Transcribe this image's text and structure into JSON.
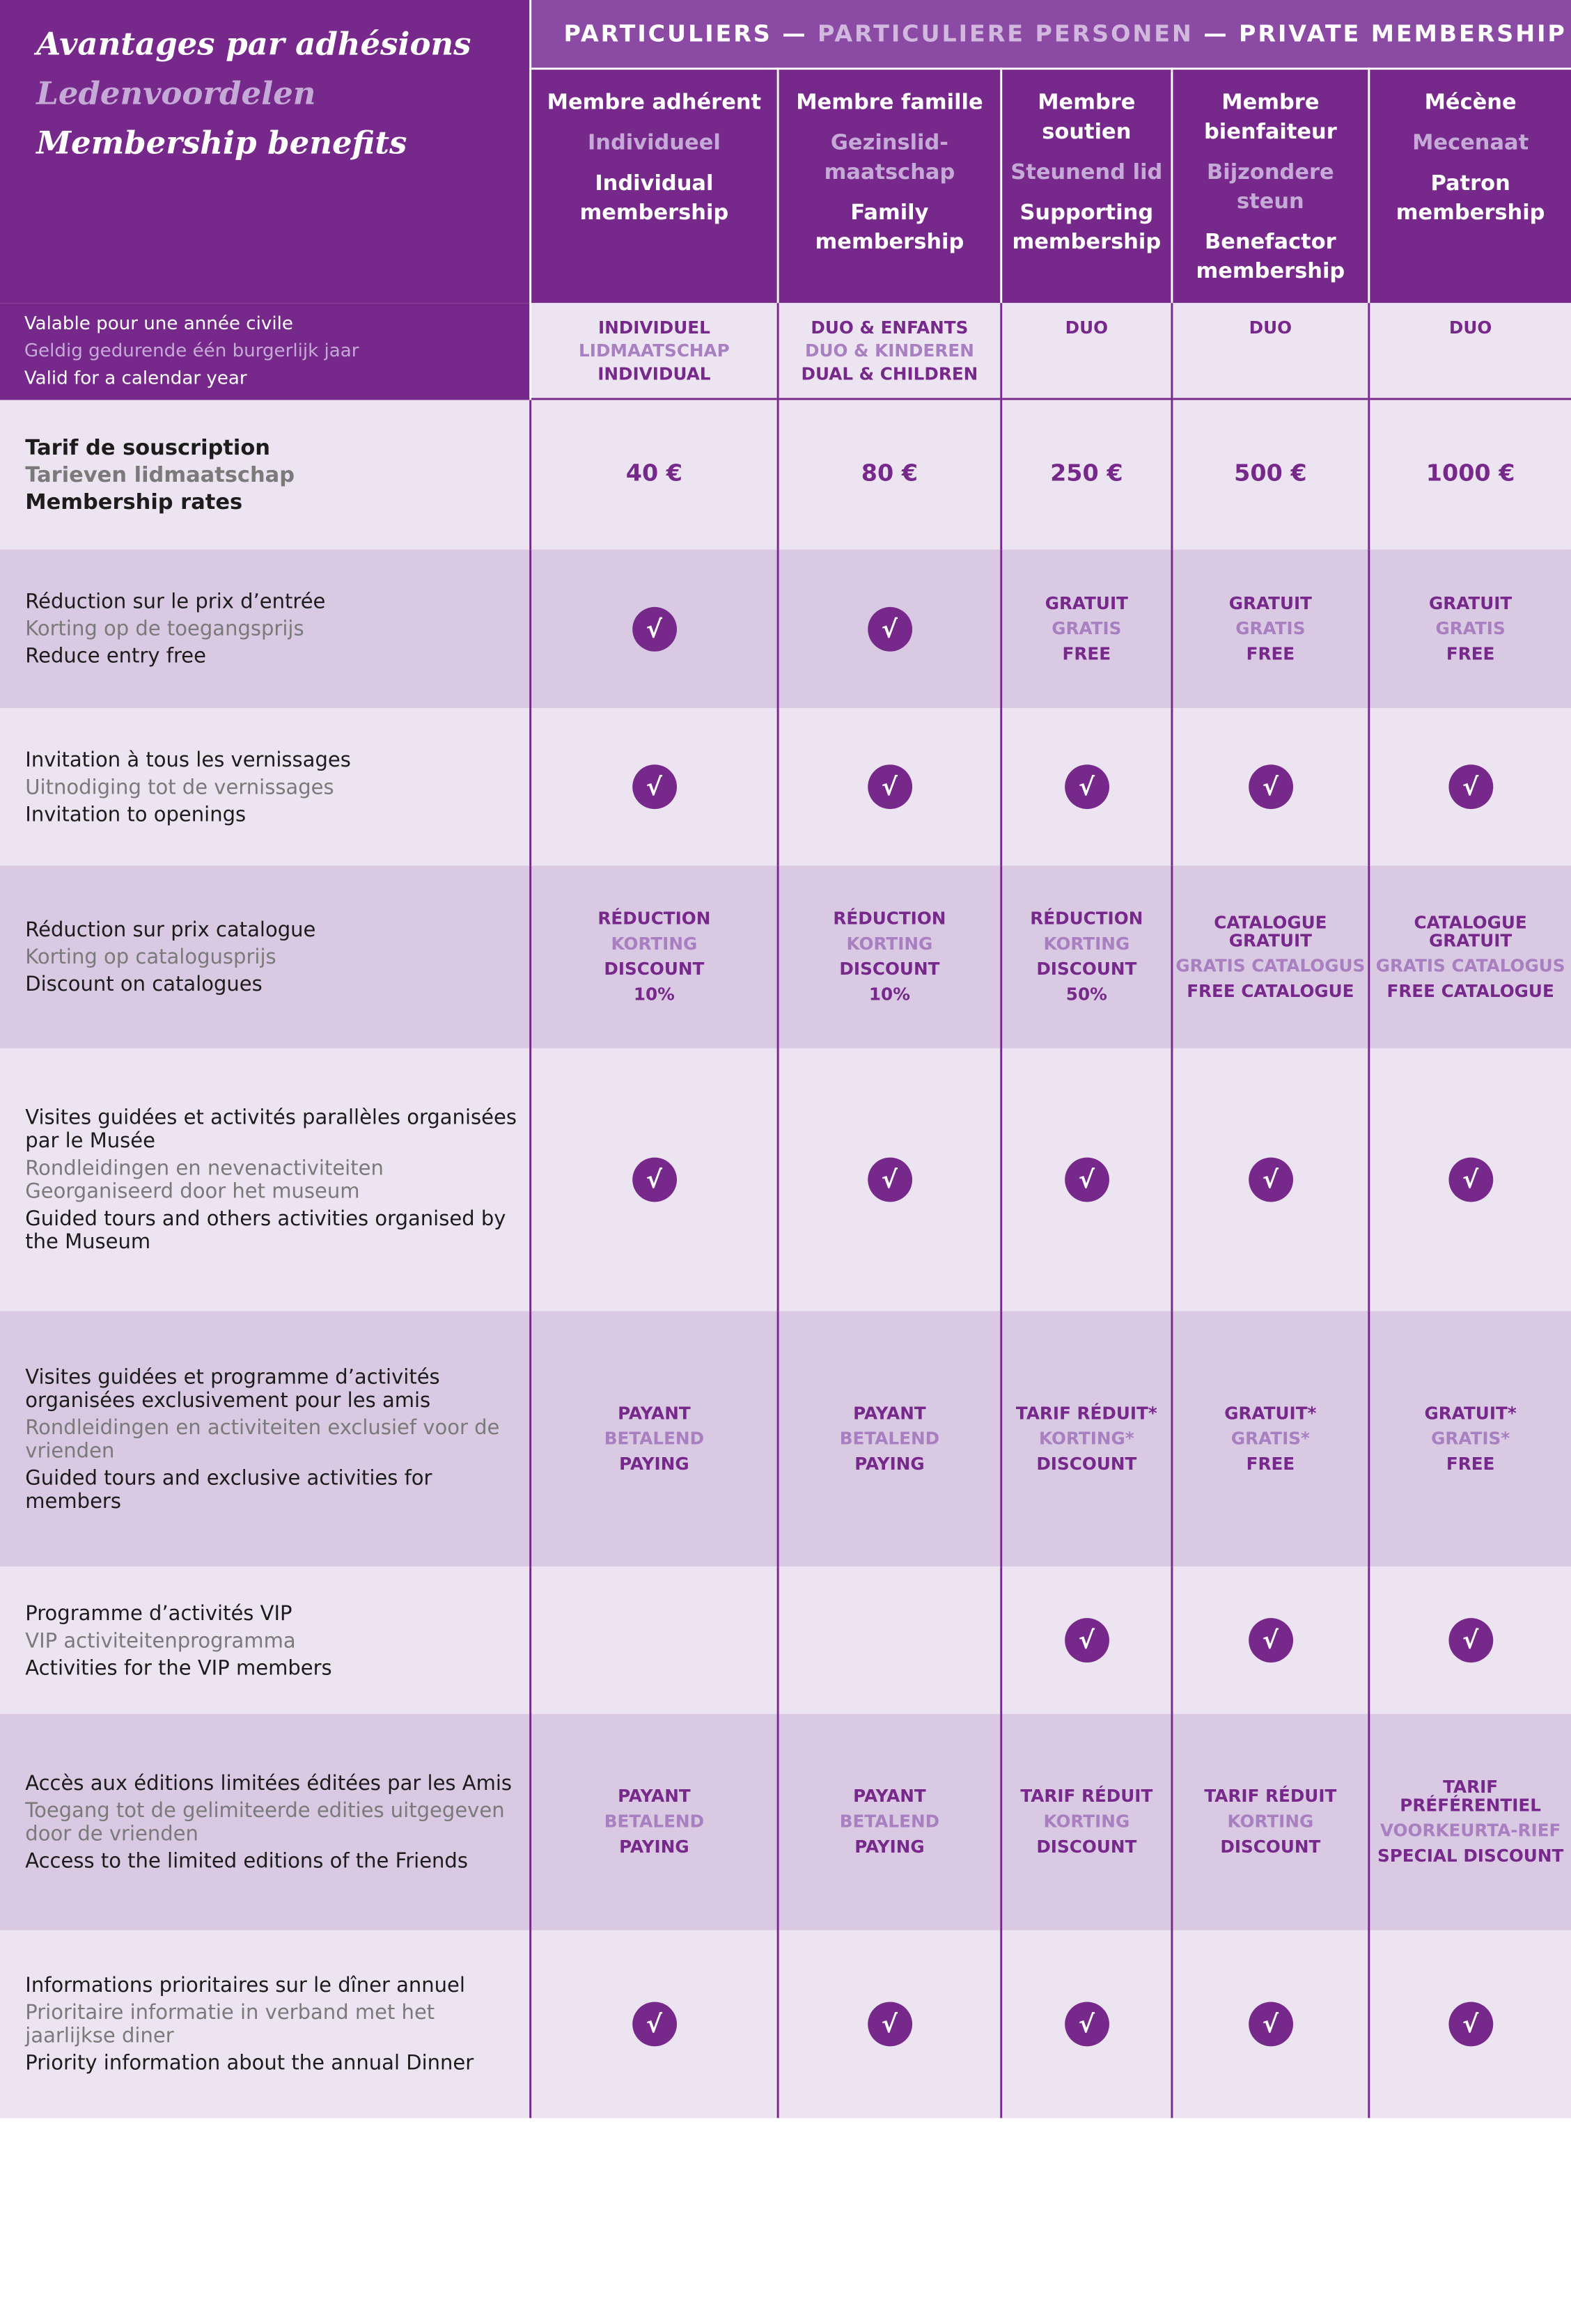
{
  "header": {
    "title_fr": "Avantages par adhésions",
    "title_nl": "Ledenvoordelen",
    "title_en": "Membership benefits",
    "banner_fr": "PARTICULIERS",
    "banner_sep1": "—",
    "banner_nl": "PARTICULIERE PERSONEN",
    "banner_sep2": "—",
    "banner_en": "PRIVATE MEMBERSHIP"
  },
  "tiers": [
    {
      "fr": "Membre adhérent",
      "nl": "Individueel",
      "en": "Individual membership"
    },
    {
      "fr": "Membre famille",
      "nl": "Gezinslid-maatschap",
      "en": "Family membership"
    },
    {
      "fr": "Membre soutien",
      "nl": "Steunend lid",
      "en": "Supporting membership"
    },
    {
      "fr": "Membre bienfaiteur",
      "nl": "Bijzondere steun",
      "en": "Benefactor membership"
    },
    {
      "fr": "Mécène",
      "nl": "Mecenaat",
      "en": "Patron membership"
    }
  ],
  "validity": {
    "label_fr": "Valable pour une année civile",
    "label_nl": "Geldig gedurende één burgerlijk jaar",
    "label_en": "Valid for a calendar year",
    "values": [
      {
        "fr": "INDIVIDUEL",
        "nl": "LIDMAATSCHAP",
        "en": "INDIVIDUAL"
      },
      {
        "fr": "DUO & ENFANTS",
        "nl": "DUO & KINDEREN",
        "en": "DUAL & CHILDREN"
      },
      {
        "fr": "DUO"
      },
      {
        "fr": "DUO"
      },
      {
        "fr": "DUO"
      }
    ]
  },
  "rates": {
    "label_fr": "Tarif de souscription",
    "label_nl": "Tarieven lidmaatschap",
    "label_en": "Membership rates",
    "prices": [
      "40 €",
      "80 €",
      "250 €",
      "500 €",
      "1000 €"
    ]
  },
  "benefits": [
    {
      "label_fr": "Réduction sur le prix d’entrée",
      "label_nl": "Korting op de toegangsprijs",
      "label_en": "Reduce entry free",
      "cells": [
        {
          "check": true
        },
        {
          "check": true
        },
        {
          "fr": "GRATUIT",
          "nl": "GRATIS",
          "en": "FREE"
        },
        {
          "fr": "GRATUIT",
          "nl": "GRATIS",
          "en": "FREE"
        },
        {
          "fr": "GRATUIT",
          "nl": "GRATIS",
          "en": "FREE"
        }
      ]
    },
    {
      "label_fr": "Invitation à tous les vernissages",
      "label_nl": "Uitnodiging tot de vernissages",
      "label_en": "Invitation to openings",
      "cells": [
        {
          "check": true
        },
        {
          "check": true
        },
        {
          "check": true
        },
        {
          "check": true
        },
        {
          "check": true
        }
      ]
    },
    {
      "label_fr": "Réduction sur prix catalogue",
      "label_nl": "Korting op catalogusprijs",
      "label_en": "Discount on catalogues",
      "cells": [
        {
          "fr": "RÉDUCTION",
          "nl": "KORTING",
          "en": "DISCOUNT",
          "extra": "10%"
        },
        {
          "fr": "RÉDUCTION",
          "nl": "KORTING",
          "en": "DISCOUNT",
          "extra": "10%"
        },
        {
          "fr": "RÉDUCTION",
          "nl": "KORTING",
          "en": "DISCOUNT",
          "extra": "50%"
        },
        {
          "fr": "CATALOGUE GRATUIT",
          "nl": "GRATIS CATALOGUS",
          "en": "FREE CATALOGUE"
        },
        {
          "fr": "CATALOGUE GRATUIT",
          "nl": "GRATIS CATALOGUS",
          "en": "FREE CATALOGUE"
        }
      ]
    },
    {
      "label_fr": "Visites guidées et activités parallèles organisées par le Musée",
      "label_nl": "Rondleidingen en nevenactiviteiten Georganiseerd door het museum",
      "label_en": "Guided tours and others activities organised by the Museum",
      "cells": [
        {
          "check": true
        },
        {
          "check": true
        },
        {
          "check": true
        },
        {
          "check": true
        },
        {
          "check": true
        }
      ]
    },
    {
      "label_fr": "Visites guidées et programme d’activités organisées exclusivement pour les amis",
      "label_nl": "Rondleidingen en activiteiten exclusief voor de vrienden",
      "label_en": "Guided tours and exclusive activities for members",
      "cells": [
        {
          "fr": "PAYANT",
          "nl": "BETALEND",
          "en": "PAYING"
        },
        {
          "fr": "PAYANT",
          "nl": "BETALEND",
          "en": "PAYING"
        },
        {
          "fr": "TARIF RÉDUIT*",
          "nl": "KORTING*",
          "en": "DISCOUNT"
        },
        {
          "fr": "GRATUIT*",
          "nl": "GRATIS*",
          "en": "FREE"
        },
        {
          "fr": "GRATUIT*",
          "nl": "GRATIS*",
          "en": "FREE"
        }
      ]
    },
    {
      "label_fr": "Programme d’activités VIP",
      "label_nl": "VIP activiteitenprogramma",
      "label_en": "Activities for the VIP members",
      "cells": [
        {},
        {},
        {
          "check": true
        },
        {
          "check": true
        },
        {
          "check": true
        }
      ]
    },
    {
      "label_fr": "Accès aux éditions limitées éditées par les Amis",
      "label_nl": "Toegang tot de gelimiteerde edities uitgegeven door de vrienden",
      "label_en": "Access to the limited editions of the Friends",
      "cells": [
        {
          "fr": "PAYANT",
          "nl": "BETALEND",
          "en": "PAYING"
        },
        {
          "fr": "PAYANT",
          "nl": "BETALEND",
          "en": "PAYING"
        },
        {
          "fr": "TARIF RÉDUIT",
          "nl": "KORTING",
          "en": "DISCOUNT"
        },
        {
          "fr": "TARIF RÉDUIT",
          "nl": "KORTING",
          "en": "DISCOUNT"
        },
        {
          "fr": "TARIF PRÉFÉRENTIEL",
          "nl": "VOORKEURTA-RIEF",
          "en": "SPECIAL DISCOUNT"
        }
      ]
    },
    {
      "label_fr": "Informations prioritaires sur le dîner annuel",
      "label_nl": "Prioritaire informatie in verband met het jaarlijkse diner",
      "label_en": "Priority information about the annual Dinner",
      "cells": [
        {
          "check": true
        },
        {
          "check": true
        },
        {
          "check": true
        },
        {
          "check": true
        },
        {
          "check": true
        }
      ]
    }
  ],
  "check_glyph": "√",
  "colors": {
    "brand": "#77298b",
    "banner": "#8b4aa3",
    "light_row": "#ece4f1",
    "dark_row": "#d9c9e2",
    "secondary_text": "#a87fc0"
  }
}
